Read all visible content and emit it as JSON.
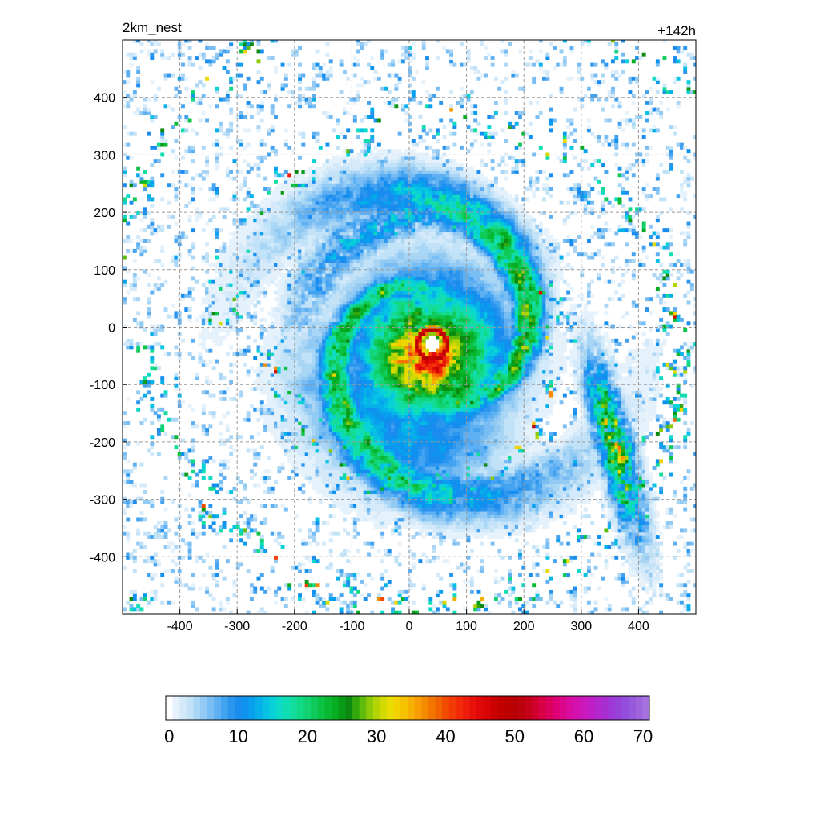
{
  "chart_data": {
    "type": "heatmap",
    "left_label": "2km_nest",
    "right_label": "+142h",
    "xlim": [
      -500,
      500
    ],
    "ylim": [
      -500,
      500
    ],
    "x_ticks": [
      -400,
      -300,
      -200,
      -100,
      0,
      100,
      200,
      300,
      400
    ],
    "y_ticks": [
      400,
      300,
      200,
      100,
      0,
      -100,
      -200,
      -300,
      -400
    ],
    "grid": true,
    "grid_style": "dashed",
    "colorbar": {
      "min": 0,
      "max": 70,
      "step": 1,
      "tick_values": [
        0,
        10,
        20,
        30,
        40,
        50,
        60,
        70
      ],
      "colors": [
        "#ffffff",
        "#e6f2fb",
        "#d4eafa",
        "#c2e2f8",
        "#aad6f6",
        "#92caf4",
        "#78bdf3",
        "#5eb0f2",
        "#44a3f1",
        "#2c96ef",
        "#1a8cef",
        "#0f92ef",
        "#08a0ee",
        "#06b1ea",
        "#06c2e4",
        "#08d2d8",
        "#0cdac6",
        "#10ddb2",
        "#12dd9c",
        "#12d986",
        "#12d372",
        "#10cb5a",
        "#0cc244",
        "#08b830",
        "#06ac22",
        "#089c16",
        "#0c8a10",
        "#32a80e",
        "#5ebc0c",
        "#8cca08",
        "#b2d404",
        "#d2da02",
        "#e8dc00",
        "#f2d200",
        "#f6c200",
        "#f8b000",
        "#f89e00",
        "#f68a00",
        "#f47600",
        "#f26200",
        "#f24c00",
        "#f23a04",
        "#f22a08",
        "#ee1c0a",
        "#e8100a",
        "#e00808",
        "#d80404",
        "#cc0202",
        "#c20000",
        "#bc0000",
        "#b80004",
        "#bc000c",
        "#c6001a",
        "#d0002e",
        "#d80046",
        "#dc005e",
        "#de0076",
        "#dc068c",
        "#d80c9e",
        "#d212ae",
        "#ca18ba",
        "#c01ec4",
        "#b426cc",
        "#a82ed2",
        "#9e38d6",
        "#9842d8",
        "#944cda",
        "#9858dc",
        "#9e64de",
        "#a672e0"
      ]
    },
    "storm_center": [
      40,
      -30
    ],
    "field_description_values": {
      "eye_radius_km": 14,
      "eyewall_radius_km": 26,
      "max_value": 55
    }
  }
}
